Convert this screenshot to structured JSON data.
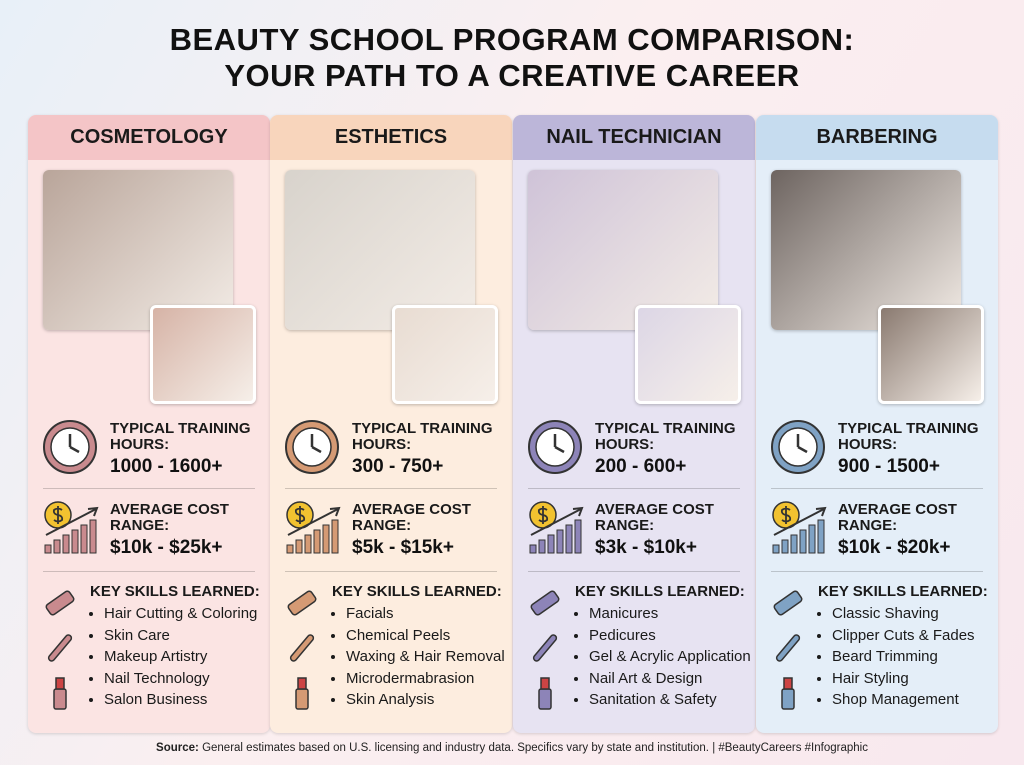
{
  "header": {
    "title_line1": "BEAUTY SCHOOL PROGRAM COMPARISON:",
    "title_line2": "YOUR PATH TO A CREATIVE CAREER"
  },
  "programs": [
    {
      "name": "COSMETOLOGY",
      "hours_label": "TYPICAL TRAINING HOURS:",
      "hours": "1000 - 1600+",
      "cost_label": "AVERAGE COST RANGE:",
      "cost": "$10k - $25k+",
      "skills_label": "KEY SKILLS LEARNED:",
      "skills": [
        "Hair Cutting & Coloring",
        "Skin Care",
        "Makeup Artistry",
        "Nail Technology",
        "Salon Business"
      ]
    },
    {
      "name": "ESTHETICS",
      "hours_label": "TYPICAL TRAINING HOURS:",
      "hours": "300 - 750+",
      "cost_label": "AVERAGE COST RANGE:",
      "cost": "$5k - $15k+",
      "skills_label": "KEY SKILLS LEARNED:",
      "skills": [
        "Facials",
        "Chemical Peels",
        "Waxing & Hair Removal",
        "Microdermabrasion",
        "Skin Analysis"
      ]
    },
    {
      "name": "NAIL TECHNICIAN",
      "hours_label": "TYPICAL TRAINING HOURS:",
      "hours": "200 - 600+",
      "cost_label": "AVERAGE COST RANGE:",
      "cost": "$3k - $10k+",
      "skills_label": "KEY SKILLS LEARNED:",
      "skills": [
        "Manicures",
        "Pedicures",
        "Gel & Acrylic Application",
        "Nail Art & Design",
        "Sanitation & Safety"
      ]
    },
    {
      "name": "BARBERING",
      "hours_label": "TYPICAL TRAINING HOURS:",
      "hours": "900 - 1500+",
      "cost_label": "AVERAGE COST RANGE:",
      "cost": "$10k - $20k+",
      "skills_label": "KEY SKILLS LEARNED:",
      "skills": [
        "Classic Shaving",
        "Clipper Cuts & Fades",
        "Beard Trimming",
        "Hair Styling",
        "Shop Management"
      ]
    }
  ],
  "footer": {
    "source_label": "Source:",
    "source_text": "General estimates based on U.S. licensing and industry data. Specifics vary by state and institution.",
    "tags": "|  #BeautyCareers  #Infographic"
  }
}
